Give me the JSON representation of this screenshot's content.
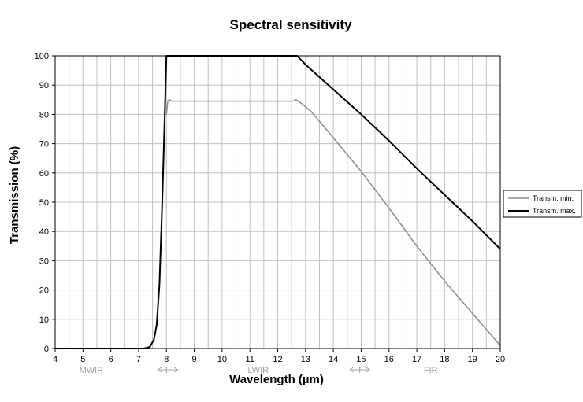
{
  "chart_data": {
    "type": "line",
    "title": "Spectral sensitivity",
    "xlabel": "Wavelength (µm)",
    "ylabel": "Transmission (%)",
    "xlim": [
      4,
      20
    ],
    "ylim": [
      0,
      100
    ],
    "x_ticks": [
      4,
      5,
      6,
      7,
      8,
      9,
      10,
      11,
      12,
      13,
      14,
      15,
      16,
      17,
      18,
      19,
      20
    ],
    "y_ticks": [
      0,
      10,
      20,
      30,
      40,
      50,
      60,
      70,
      80,
      90,
      100
    ],
    "x_minor_step": 0.5,
    "grid": true,
    "legend_position": "right",
    "colors": {
      "min": "#8c8c8c",
      "max": "#000000",
      "grid": "#c0c0c0",
      "band": "#a0a0a0"
    },
    "bands": [
      {
        "label": "MWIR",
        "x": 5.3
      },
      {
        "label": "LWIR",
        "x": 11.3
      },
      {
        "label": "FIR",
        "x": 17.5
      }
    ],
    "band_markers": [
      {
        "from": 7.7,
        "to": 8.4,
        "center": 8.0
      },
      {
        "from": 14.6,
        "to": 15.3,
        "center": 14.95
      }
    ],
    "series": [
      {
        "name": "Transm. min.",
        "x": [
          8.0,
          8.05,
          8.1,
          8.2,
          8.4,
          9.0,
          10.0,
          11.0,
          12.0,
          12.55,
          12.65,
          12.75,
          13.2,
          14.0,
          15.0,
          16.0,
          17.0,
          18.0,
          19.0,
          20.0
        ],
        "y": [
          80,
          84.6,
          85,
          84.5,
          84.5,
          84.5,
          84.5,
          84.5,
          84.5,
          84.5,
          85,
          84.5,
          81,
          72,
          60.5,
          48,
          35,
          23,
          12,
          1
        ]
      },
      {
        "name": "Transm. max.",
        "x": [
          4,
          7.0,
          7.2,
          7.4,
          7.55,
          7.65,
          7.75,
          7.85,
          7.95,
          8.0,
          12.7,
          13.0,
          14.0,
          15.0,
          16.0,
          17.0,
          18.0,
          19.0,
          20.0
        ],
        "y": [
          0,
          0,
          0,
          0.5,
          3,
          8,
          22,
          50,
          83,
          100,
          100,
          97,
          88.5,
          80,
          71,
          61.5,
          52.5,
          43.5,
          34
        ]
      }
    ]
  }
}
